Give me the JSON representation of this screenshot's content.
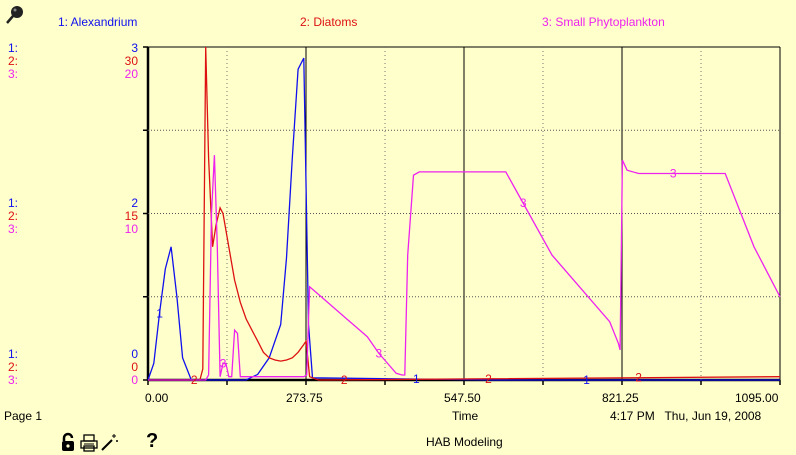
{
  "series_labels": [
    "1: Alexandrium",
    "2: Diatoms",
    "3: Small Phytoplankton"
  ],
  "y_axis": {
    "top": {
      "labels": [
        "1:",
        "2:",
        "3:"
      ],
      "values": [
        "3",
        "30",
        "20"
      ]
    },
    "middle": {
      "labels": [
        "1:",
        "2:",
        "3:"
      ],
      "values": [
        "2",
        "15",
        "10"
      ]
    },
    "bottom": {
      "labels": [
        "1:",
        "2:",
        "3:"
      ],
      "values": [
        "0",
        "0",
        "0"
      ]
    }
  },
  "x_ticks": [
    "0.00",
    "273.75",
    "547.50",
    "821.25",
    "1095.00"
  ],
  "x_label": "Time",
  "page_label": "Page 1",
  "timestamp": "4:17 PM   Thu, Jun 19, 2008",
  "model_title": "HAB Modeling",
  "help_glyph": "?",
  "colors": {
    "alexandrium": "#1010ee",
    "diatoms": "#dd1111",
    "small_phyto": "#ee22ee",
    "background": "#ffffcc"
  },
  "icons": [
    "lock-icon",
    "print-icon",
    "magic-wand-icon",
    "help-icon",
    "pin-icon"
  ],
  "chart_data": {
    "type": "line",
    "xlabel": "Time",
    "xlim": [
      0,
      1095
    ],
    "series": [
      {
        "name": "Alexandrium",
        "marker": "1",
        "ylim": [
          0,
          3
        ],
        "x": [
          0,
          10,
          20,
          30,
          40,
          50,
          60,
          75,
          90,
          170,
          190,
          210,
          230,
          240,
          250,
          260,
          270,
          278,
          285,
          600,
          1095
        ],
        "y": [
          0,
          0.15,
          0.6,
          1.0,
          1.2,
          0.75,
          0.2,
          0,
          0,
          0,
          0.05,
          0.2,
          0.5,
          1.1,
          2.0,
          2.8,
          2.9,
          0.5,
          0.02,
          0,
          0
        ]
      },
      {
        "name": "Diatoms",
        "marker": "2",
        "ylim": [
          0,
          30
        ],
        "x": [
          0,
          80,
          90,
          95,
          100,
          105,
          112,
          118,
          125,
          130,
          140,
          150,
          160,
          170,
          180,
          190,
          200,
          210,
          220,
          230,
          240,
          250,
          260,
          270,
          274,
          280,
          295,
          1095
        ],
        "y": [
          0,
          0,
          0,
          1,
          30,
          20,
          12,
          14,
          15.5,
          15,
          12,
          9,
          7,
          5.5,
          4.5,
          3.5,
          2.5,
          2,
          1.8,
          1.7,
          1.8,
          2.0,
          2.5,
          3.2,
          3.5,
          0.3,
          0,
          0.3
        ]
      },
      {
        "name": "Small Phytoplankton",
        "marker": "3",
        "ylim": [
          0,
          20
        ],
        "x": [
          0,
          100,
          105,
          110,
          115,
          120,
          125,
          130,
          135,
          140,
          145,
          150,
          155,
          160,
          270,
          275,
          280,
          300,
          320,
          340,
          360,
          380,
          400,
          430,
          440,
          445,
          450,
          460,
          470,
          500,
          600,
          620,
          660,
          700,
          750,
          800,
          815,
          818,
          822,
          830,
          850,
          900,
          950,
          1000,
          1050,
          1095
        ],
        "y": [
          0,
          0,
          0.3,
          10,
          13.5,
          8,
          0.2,
          1,
          1,
          0.2,
          0.2,
          3,
          2.8,
          0.2,
          0.2,
          0.3,
          5.6,
          5.0,
          4.4,
          3.8,
          3.2,
          2.6,
          1.6,
          0.4,
          0.3,
          0.3,
          7.5,
          12.3,
          12.5,
          12.5,
          12.5,
          12.5,
          10,
          7.5,
          5.5,
          3.5,
          2.2,
          1.8,
          13.2,
          12.6,
          12.4,
          12.4,
          12.4,
          12.4,
          8.0,
          5.0
        ]
      }
    ]
  }
}
